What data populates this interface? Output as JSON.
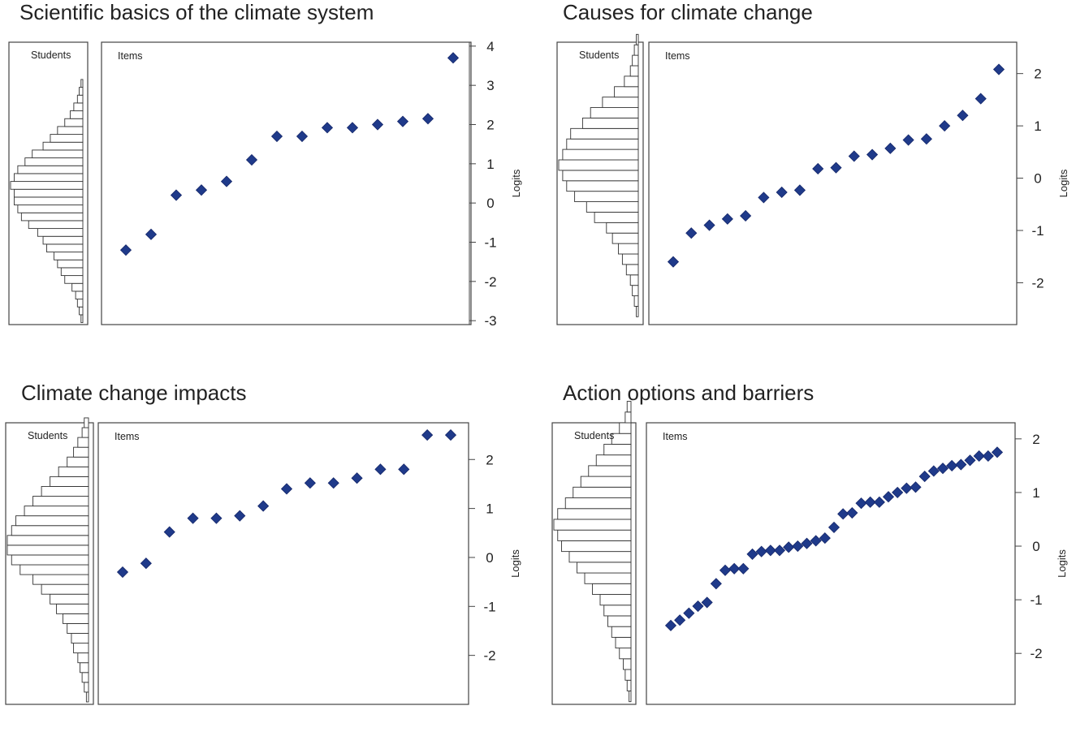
{
  "chart_data": [
    {
      "type": "wright-map",
      "title": "Scientific basics of the climate system",
      "students_label": "Students",
      "items_label": "Items",
      "ylabel": "Logits",
      "ylim": [
        -3.1,
        4.1
      ],
      "yticks": [
        -3,
        -2,
        -1,
        0,
        1,
        2,
        3,
        4
      ],
      "item_logits": [
        -1.2,
        -0.8,
        0.2,
        0.33,
        0.55,
        1.1,
        1.7,
        1.7,
        1.92,
        1.92,
        2.0,
        2.08,
        2.15,
        3.7
      ],
      "student_distribution": {
        "bin_start": -3.05,
        "bin_width": 0.2,
        "counts": [
          1,
          2,
          3,
          4,
          6,
          10,
          12,
          14,
          16,
          20,
          22,
          25,
          30,
          34,
          36,
          38,
          38,
          40,
          38,
          36,
          32,
          28,
          22,
          18,
          14,
          10,
          7,
          5,
          3,
          2,
          1
        ]
      }
    },
    {
      "type": "wright-map",
      "title": "Causes for climate change",
      "students_label": "Students",
      "items_label": "Items",
      "ylabel": "Logits",
      "ylim": [
        -2.8,
        2.6
      ],
      "yticks": [
        -2,
        -1,
        0,
        1,
        2
      ],
      "item_logits": [
        -1.6,
        -1.05,
        -0.9,
        -0.78,
        -0.72,
        -0.37,
        -0.27,
        -0.23,
        0.18,
        0.2,
        0.42,
        0.45,
        0.57,
        0.73,
        0.75,
        1.0,
        1.2,
        1.52,
        2.08
      ],
      "student_distribution": {
        "bin_start": -2.65,
        "bin_width": 0.2,
        "counts": [
          1,
          2,
          3,
          4,
          6,
          8,
          10,
          13,
          16,
          22,
          26,
          32,
          36,
          38,
          40,
          38,
          36,
          34,
          28,
          24,
          18,
          12,
          7,
          4,
          3,
          2,
          1
        ]
      }
    },
    {
      "type": "wright-map",
      "title": "Climate change impacts",
      "students_label": "Students",
      "items_label": "Items",
      "ylabel": "Logits",
      "ylim": [
        -3.0,
        2.75
      ],
      "yticks": [
        -2,
        -1,
        0,
        1,
        2
      ],
      "item_logits": [
        -0.3,
        -0.12,
        0.52,
        0.8,
        0.8,
        0.85,
        1.05,
        1.4,
        1.52,
        1.52,
        1.62,
        1.8,
        1.8,
        2.5,
        2.5
      ],
      "student_distribution": {
        "bin_start": -2.95,
        "bin_width": 0.2,
        "counts": [
          1,
          2,
          3,
          4,
          5,
          7,
          8,
          10,
          12,
          15,
          18,
          22,
          26,
          32,
          36,
          38,
          38,
          36,
          34,
          30,
          26,
          22,
          18,
          14,
          10,
          7,
          5,
          3,
          2
        ]
      }
    },
    {
      "type": "wright-map",
      "title": "Action options and barriers",
      "students_label": "Students",
      "items_label": "Items",
      "ylabel": "Logits",
      "ylim": [
        -2.95,
        2.3
      ],
      "yticks": [
        -2,
        -1,
        0,
        1,
        2
      ],
      "item_logits": [
        -1.48,
        -1.38,
        -1.25,
        -1.12,
        -1.05,
        -0.7,
        -0.45,
        -0.42,
        -0.42,
        -0.15,
        -0.1,
        -0.08,
        -0.08,
        -0.02,
        0.0,
        0.05,
        0.1,
        0.15,
        0.35,
        0.6,
        0.62,
        0.8,
        0.82,
        0.82,
        0.92,
        1.0,
        1.08,
        1.1,
        1.3,
        1.4,
        1.45,
        1.5,
        1.52,
        1.6,
        1.68,
        1.68,
        1.75
      ],
      "student_distribution": {
        "bin_start": -2.9,
        "bin_width": 0.2,
        "counts": [
          1,
          2,
          3,
          4,
          6,
          8,
          10,
          12,
          14,
          16,
          20,
          24,
          28,
          32,
          36,
          38,
          40,
          38,
          34,
          30,
          26,
          22,
          18,
          14,
          10,
          6,
          3,
          2
        ]
      }
    }
  ]
}
